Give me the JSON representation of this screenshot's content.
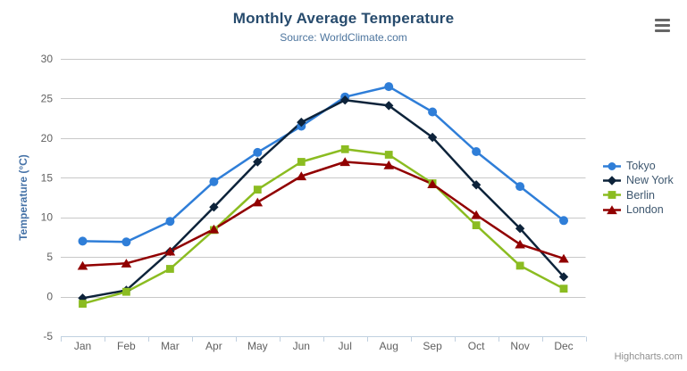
{
  "chart_data": {
    "type": "line",
    "title": "Monthly Average Temperature",
    "subtitle": "Source: WorldClimate.com",
    "xlabel": "",
    "ylabel": "Temperature (°C)",
    "ylim": [
      -5,
      30
    ],
    "yticks": [
      -5,
      0,
      5,
      10,
      15,
      20,
      25,
      30
    ],
    "grid": true,
    "legend_position": "right",
    "categories": [
      "Jan",
      "Feb",
      "Mar",
      "Apr",
      "May",
      "Jun",
      "Jul",
      "Aug",
      "Sep",
      "Oct",
      "Nov",
      "Dec"
    ],
    "series": [
      {
        "name": "Tokyo",
        "color": "#2f7ed8",
        "marker": "circle",
        "values": [
          7.0,
          6.9,
          9.5,
          14.5,
          18.2,
          21.5,
          25.2,
          26.5,
          23.3,
          18.3,
          13.9,
          9.6
        ]
      },
      {
        "name": "New York",
        "color": "#0d233a",
        "marker": "diamond",
        "values": [
          -0.2,
          0.8,
          5.7,
          11.3,
          17.0,
          22.0,
          24.8,
          24.1,
          20.1,
          14.1,
          8.6,
          2.5
        ]
      },
      {
        "name": "Berlin",
        "color": "#8bbc21",
        "marker": "square",
        "values": [
          -0.9,
          0.6,
          3.5,
          8.4,
          13.5,
          17.0,
          18.6,
          17.9,
          14.3,
          9.0,
          3.9,
          1.0
        ]
      },
      {
        "name": "London",
        "color": "#910000",
        "marker": "triangle",
        "values": [
          3.9,
          4.2,
          5.7,
          8.5,
          11.9,
          15.2,
          17.0,
          16.6,
          14.2,
          10.3,
          6.6,
          4.8
        ]
      }
    ],
    "style": {
      "title_color": "#274b6d",
      "subtitle_color": "#4d759e",
      "axis_title_color": "#4572A7",
      "tick_label_color": "#606060",
      "gridline_color": "#C8C8C8",
      "axis_line_color": "#C0D0E0"
    }
  },
  "credits": {
    "label": "Highcharts.com"
  }
}
